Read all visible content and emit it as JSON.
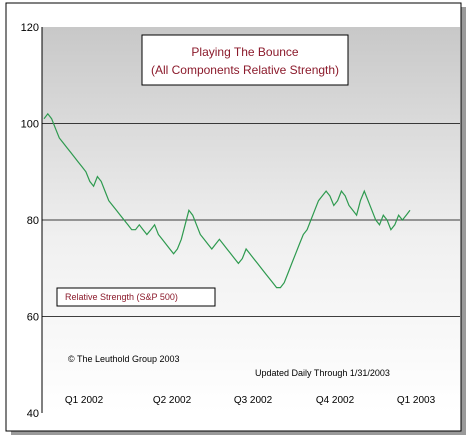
{
  "chart_data": {
    "type": "line",
    "title_line1": "Playing The Bounce",
    "title_line2": "(All Components Relative Strength)",
    "xlabel": "",
    "ylabel": "",
    "ylim": [
      40,
      120
    ],
    "yticks": [
      40,
      60,
      80,
      100,
      120
    ],
    "quarters": [
      "Q1 2002",
      "Q2 2002",
      "Q3 2002",
      "Q4 2002",
      "Q1 2003"
    ],
    "grid": true,
    "series": [
      {
        "name": "Relative Strength (S&P 500)",
        "color": "#2e9a4f",
        "x": [
          0,
          0.01,
          0.02,
          0.03,
          0.04,
          0.05,
          0.06,
          0.07,
          0.08,
          0.09,
          0.1,
          0.11,
          0.12,
          0.13,
          0.14,
          0.15,
          0.16,
          0.17,
          0.18,
          0.19,
          0.2,
          0.21,
          0.22,
          0.23,
          0.24,
          0.25,
          0.26,
          0.27,
          0.28,
          0.29,
          0.3,
          0.31,
          0.32,
          0.33,
          0.34,
          0.35,
          0.36,
          0.37,
          0.38,
          0.39,
          0.4,
          0.41,
          0.42,
          0.43,
          0.44,
          0.45,
          0.46,
          0.47,
          0.48,
          0.49,
          0.5,
          0.51,
          0.52,
          0.53,
          0.54,
          0.55,
          0.56,
          0.57,
          0.58,
          0.59,
          0.6,
          0.61,
          0.62,
          0.63,
          0.64,
          0.65,
          0.66,
          0.67,
          0.68,
          0.69,
          0.7,
          0.71,
          0.72,
          0.73,
          0.74,
          0.75,
          0.76,
          0.77,
          0.78,
          0.79,
          0.8,
          0.81,
          0.82,
          0.83,
          0.84,
          0.85,
          0.86,
          0.87,
          0.88,
          0.89,
          0.9,
          0.91,
          0.92,
          0.93,
          0.94,
          0.95,
          0.96
        ],
        "y": [
          101,
          102,
          101,
          99,
          97,
          96,
          95,
          94,
          93,
          92,
          91,
          90,
          88,
          87,
          89,
          88,
          86,
          84,
          83,
          82,
          81,
          80,
          79,
          78,
          78,
          79,
          78,
          77,
          78,
          79,
          77,
          76,
          75,
          74,
          73,
          74,
          76,
          79,
          82,
          81,
          79,
          77,
          76,
          75,
          74,
          75,
          76,
          75,
          74,
          73,
          72,
          71,
          72,
          74,
          73,
          72,
          71,
          70,
          69,
          68,
          67,
          66,
          66,
          67,
          69,
          71,
          73,
          75,
          77,
          78,
          80,
          82,
          84,
          85,
          86,
          85,
          83,
          84,
          86,
          85,
          83,
          82,
          81,
          84,
          86,
          84,
          82,
          80,
          79,
          81,
          80,
          78,
          79,
          81,
          80,
          81,
          82
        ]
      }
    ],
    "annotations": {
      "copyright": "© The Leuthold Group 2003",
      "updated": "Updated Daily Through 1/31/2003"
    }
  }
}
